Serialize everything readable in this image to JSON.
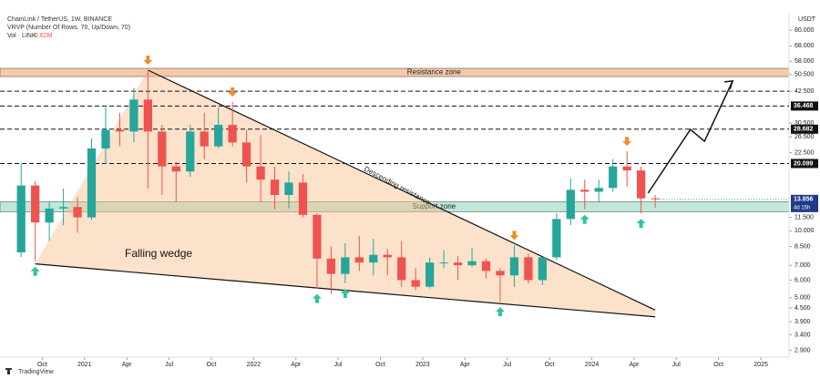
{
  "chart_data": {
    "type": "candlestick",
    "title": "ChainLink / TetherUS, 1W, BINANCE",
    "indicators": [
      "VRVP (Number Of Rows, 70, Up/Down, 70)",
      "Vol · LINK"
    ],
    "volume_label": "6.62M",
    "currency": "USDT",
    "brand": "TradingView",
    "log_scale": true,
    "up_color": "#26a69a",
    "down_color": "#ef5350",
    "x": [
      "2020-08",
      "2020-09",
      "2020-10",
      "2020-11",
      "2020-12",
      "2021-01",
      "2021-02",
      "2021-03",
      "2021-04",
      "2021-05",
      "2021-06",
      "2021-07",
      "2021-08",
      "2021-09",
      "2021-10",
      "2021-11",
      "2021-12",
      "2022-01",
      "2022-02",
      "2022-03",
      "2022-04",
      "2022-05",
      "2022-06",
      "2022-07",
      "2022-08",
      "2022-09",
      "2022-10",
      "2022-11",
      "2022-12",
      "2023-01",
      "2023-02",
      "2023-03",
      "2023-04",
      "2023-05",
      "2023-06",
      "2023-07",
      "2023-08",
      "2023-09",
      "2023-10",
      "2023-11",
      "2023-12",
      "2024-01",
      "2024-02",
      "2024-03",
      "2024-04",
      "2024-05"
    ],
    "open": [
      8.0,
      16.0,
      10.9,
      12.6,
      12.8,
      11.5,
      23.5,
      28.5,
      28.0,
      39.0,
      28.0,
      19.5,
      18.5,
      28.0,
      24.0,
      30.0,
      25.0,
      19.5,
      17.0,
      14.5,
      16.5,
      11.8,
      7.5,
      6.4,
      7.6,
      7.2,
      7.8,
      7.6,
      6.0,
      5.6,
      7.2,
      7.2,
      7.0,
      7.3,
      6.6,
      6.3,
      7.6,
      6.0,
      7.6,
      11.3,
      15.3,
      15.0,
      15.6,
      19.5,
      18.7,
      14.0
    ],
    "high": [
      20.1,
      16.8,
      13.5,
      15.5,
      14.2,
      26.0,
      36.0,
      34.0,
      44.0,
      52.9,
      30.0,
      20.5,
      30.0,
      34.0,
      36.0,
      38.0,
      28.5,
      27.0,
      19.5,
      18.5,
      18.0,
      12.0,
      8.5,
      8.8,
      9.5,
      9.2,
      8.3,
      9.0,
      6.8,
      7.6,
      8.2,
      7.7,
      8.4,
      7.5,
      6.8,
      8.6,
      7.9,
      7.6,
      12.0,
      17.2,
      17.0,
      17.0,
      21.0,
      22.8,
      19.5,
      14.5
    ],
    "low": [
      7.6,
      7.3,
      9.0,
      10.6,
      9.8,
      11.2,
      20.0,
      24.0,
      25.0,
      15.5,
      14.5,
      13.5,
      17.5,
      21.0,
      23.5,
      24.0,
      16.5,
      13.5,
      12.5,
      12.6,
      11.5,
      5.5,
      5.2,
      5.8,
      6.6,
      6.3,
      6.3,
      5.6,
      5.4,
      5.5,
      6.8,
      6.0,
      6.9,
      6.1,
      4.8,
      5.6,
      5.8,
      5.7,
      7.4,
      10.6,
      12.5,
      13.4,
      15.0,
      15.8,
      12.0,
      12.7
    ],
    "close": [
      16.0,
      10.9,
      12.6,
      12.8,
      11.5,
      23.5,
      28.5,
      28.0,
      39.0,
      28.0,
      19.5,
      18.5,
      28.0,
      24.0,
      30.0,
      25.0,
      19.5,
      17.0,
      14.5,
      16.5,
      11.8,
      7.5,
      6.4,
      7.6,
      7.2,
      7.8,
      7.6,
      6.0,
      5.6,
      7.2,
      7.2,
      7.0,
      7.3,
      6.6,
      6.3,
      7.6,
      6.0,
      7.6,
      11.3,
      15.3,
      15.0,
      15.6,
      19.5,
      18.7,
      14.0,
      13.9
    ],
    "xlim": [
      "2020-07",
      "2025-03"
    ],
    "xticks": [
      {
        "value": "2020-10",
        "label": "Oct"
      },
      {
        "value": "2021-01",
        "label": "2021"
      },
      {
        "value": "2021-04",
        "label": "Apr"
      },
      {
        "value": "2021-07",
        "label": "Jul"
      },
      {
        "value": "2021-10",
        "label": "Oct"
      },
      {
        "value": "2022-01",
        "label": "2022"
      },
      {
        "value": "2022-04",
        "label": "Apr"
      },
      {
        "value": "2022-07",
        "label": "Jul"
      },
      {
        "value": "2022-10",
        "label": "Oct"
      },
      {
        "value": "2023-01",
        "label": "2023"
      },
      {
        "value": "2023-04",
        "label": "Apr"
      },
      {
        "value": "2023-07",
        "label": "Jul"
      },
      {
        "value": "2023-10",
        "label": "Oct"
      },
      {
        "value": "2024-01",
        "label": "2024"
      },
      {
        "value": "2024-04",
        "label": "Apr"
      },
      {
        "value": "2024-07",
        "label": "Jul"
      },
      {
        "value": "2024-10",
        "label": "Oct"
      },
      {
        "value": "2025-01",
        "label": "2025"
      }
    ],
    "ylim": [
      2.7,
      95
    ],
    "yticks": [
      {
        "value": 80,
        "label": "80.000"
      },
      {
        "value": 68,
        "label": "68.000"
      },
      {
        "value": 58,
        "label": "58.000"
      },
      {
        "value": 50.5,
        "label": "50.500"
      },
      {
        "value": 42.5,
        "label": "42.500"
      },
      {
        "value": 30.5,
        "label": "30.500"
      },
      {
        "value": 26.5,
        "label": "26.500"
      },
      {
        "value": 22.5,
        "label": "22.500"
      },
      {
        "value": 11.5,
        "label": "11.500"
      },
      {
        "value": 10,
        "label": "10.000"
      },
      {
        "value": 8.5,
        "label": "8.500"
      },
      {
        "value": 7,
        "label": "7.000"
      },
      {
        "value": 6,
        "label": "6.000"
      },
      {
        "value": 5,
        "label": "5.000"
      },
      {
        "value": 4.5,
        "label": "4.500"
      },
      {
        "value": 3.9,
        "label": "3.900"
      },
      {
        "value": 3.4,
        "label": "3.400"
      },
      {
        "value": 2.9,
        "label": "2.900"
      }
    ],
    "levels": [
      42.5,
      {
        "value": 36.468,
        "label": "36.468"
      },
      {
        "value": 28.682,
        "label": "28.682"
      },
      {
        "value": 20.099,
        "label": "20.099"
      }
    ],
    "last_price": {
      "value": 13.856,
      "label": "13.856"
    },
    "countdown": "4d 15h",
    "zones": [
      {
        "name": "Resistance zone",
        "range": [
          49.5,
          53.9
        ],
        "color": "#f7c9a6"
      },
      {
        "name": "Support zone",
        "range": [
          12.2,
          13.5
        ],
        "color": "#bfe8d8"
      }
    ],
    "wedge": {
      "name": "Falling wedge",
      "upper_name": "Descending resistance",
      "upper": {
        "x": [
          "2021-05",
          "2024-05"
        ],
        "y": [
          52.9,
          4.4
        ]
      },
      "lower": {
        "x": [
          "2020-09",
          "2024-05"
        ],
        "y": [
          7.1,
          4.1
        ]
      }
    },
    "projection": {
      "x": [
        "2024-05",
        "2024-08",
        "2024-09",
        "2024-11"
      ],
      "y": [
        14.8,
        28.6,
        25.3,
        47.3
      ]
    },
    "peaks": [
      "2021-05",
      "2021-11",
      "2023-07",
      "2024-03"
    ],
    "troughs": [
      "2020-09",
      "2022-05",
      "2022-07",
      "2023-06",
      "2023-12",
      "2024-04"
    ]
  }
}
